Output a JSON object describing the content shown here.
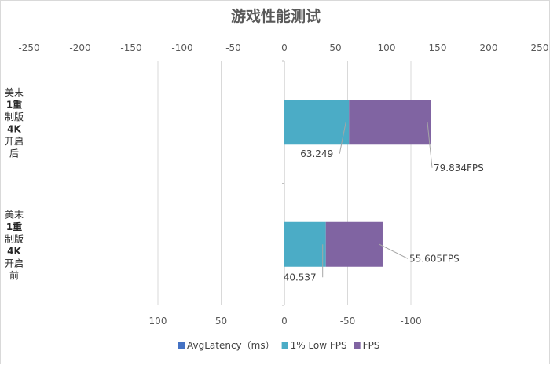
{
  "chart_data": {
    "type": "bar",
    "orientation": "horizontal",
    "stacked": true,
    "title": "游戏性能测试",
    "categories": [
      "美末1重制版4K开启后",
      "美末1重制版4K开启前"
    ],
    "category_lines": [
      [
        "美末",
        "1重",
        "制版",
        "4K",
        "开启",
        "后"
      ],
      [
        "美末",
        "1重",
        "制版",
        "4K",
        "开启",
        "前"
      ]
    ],
    "series": [
      {
        "name": "AvgLatency（ms）",
        "values": [
          0,
          0
        ],
        "color": "#4472c4",
        "axis": "secondary"
      },
      {
        "name": "1% Low FPS",
        "values": [
          63.249,
          40.537
        ],
        "color": "#4bacc6",
        "axis": "primary"
      },
      {
        "name": "FPS",
        "values": [
          79.834,
          55.605
        ],
        "color": "#8064a2",
        "axis": "primary"
      }
    ],
    "data_labels": [
      {
        "series": "1% Low FPS",
        "category": 0,
        "text": "63.249"
      },
      {
        "series": "FPS",
        "category": 0,
        "text": "79.834FPS"
      },
      {
        "series": "1% Low FPS",
        "category": 1,
        "text": "40.537"
      },
      {
        "series": "FPS",
        "category": 1,
        "text": "55.605FPS"
      }
    ],
    "top_axis": {
      "ticks": [
        "-250",
        "-200",
        "-150",
        "-100",
        "-50",
        "0",
        "50",
        "100",
        "150",
        "200",
        "250"
      ],
      "range": [
        -250,
        250
      ]
    },
    "bottom_axis": {
      "ticks": [
        "100",
        "50",
        "0",
        "-50",
        "-100"
      ],
      "range": [
        100,
        -100
      ]
    },
    "legend_position": "bottom",
    "grid": true
  }
}
